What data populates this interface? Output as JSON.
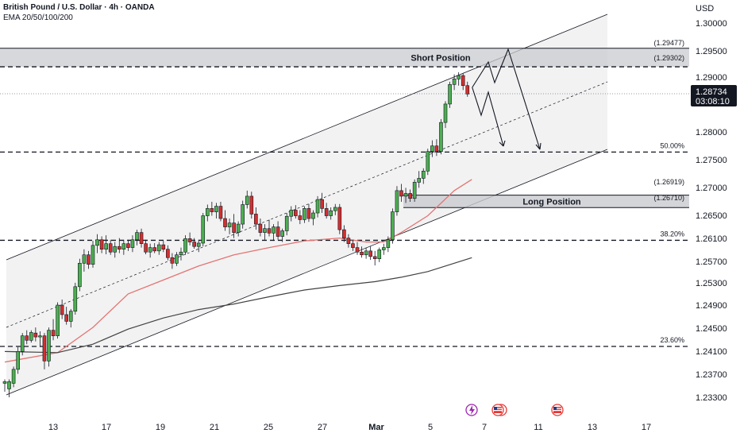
{
  "header": {
    "symbol_line": "British Pound / U.S. Dollar · 4h · OANDA",
    "indicator_line": "EMA 20/50/100/200"
  },
  "axis": {
    "currency": "USD"
  },
  "last_price": {
    "value": "1.28734",
    "countdown": "03:08:10"
  },
  "positions": {
    "short_label": "Short Position",
    "long_label": "Long Position"
  },
  "colors": {
    "up": "#4caf50",
    "down": "#d32f2f",
    "ema_fast": "#e57373",
    "ema_slow": "#424242",
    "price_box": "#131722"
  },
  "chart_data": {
    "type": "candlestick",
    "title": "",
    "ylabel": "USD",
    "ylim": [
      1.229,
      1.304
    ],
    "y_ticks": [
      "1.30000",
      "1.29500",
      "1.29000",
      "1.28000",
      "1.27500",
      "1.27000",
      "1.26500",
      "1.26100",
      "1.25700",
      "1.25300",
      "1.24900",
      "1.24500",
      "1.24100",
      "1.23700",
      "1.23300"
    ],
    "x_ticks": [
      "13",
      "17",
      "19",
      "21",
      "25",
      "27",
      "Mar",
      "5",
      "7",
      "11",
      "13",
      "17"
    ],
    "annotations": {
      "short_zone_top": "(1.29477)",
      "short_zone_mid": "(1.29302)",
      "long_zone_top": "(1.26919)",
      "long_zone_bottom": "(1.26710)",
      "fib_50": "50.00%",
      "fib_38": "38.20%",
      "fib_23": "23.60%"
    },
    "levels": {
      "short_zone": [
        1.29302,
        1.29477
      ],
      "long_zone": [
        1.2671,
        1.26919
      ],
      "fib_50": 1.2769,
      "fib_38": 1.2611,
      "fib_23": 1.2421,
      "last": 1.28734
    },
    "candles": [
      {
        "o": 1.2355,
        "h": 1.2362,
        "l": 1.234,
        "c": 1.2358
      },
      {
        "o": 1.2345,
        "h": 1.2362,
        "l": 1.233,
        "c": 1.2358
      },
      {
        "o": 1.2355,
        "h": 1.2385,
        "l": 1.2348,
        "c": 1.238
      },
      {
        "o": 1.238,
        "h": 1.242,
        "l": 1.2372,
        "c": 1.2412
      },
      {
        "o": 1.2412,
        "h": 1.2445,
        "l": 1.2405,
        "c": 1.244
      },
      {
        "o": 1.244,
        "h": 1.245,
        "l": 1.2425,
        "c": 1.2432
      },
      {
        "o": 1.2432,
        "h": 1.245,
        "l": 1.2428,
        "c": 1.2446
      },
      {
        "o": 1.2445,
        "h": 1.2455,
        "l": 1.243,
        "c": 1.2438
      },
      {
        "o": 1.2438,
        "h": 1.2448,
        "l": 1.242,
        "c": 1.244
      },
      {
        "o": 1.244,
        "h": 1.2445,
        "l": 1.238,
        "c": 1.2395
      },
      {
        "o": 1.2395,
        "h": 1.2455,
        "l": 1.2385,
        "c": 1.245
      },
      {
        "o": 1.245,
        "h": 1.247,
        "l": 1.2432,
        "c": 1.244
      },
      {
        "o": 1.244,
        "h": 1.25,
        "l": 1.2435,
        "c": 1.2495
      },
      {
        "o": 1.2495,
        "h": 1.2505,
        "l": 1.247,
        "c": 1.2478
      },
      {
        "o": 1.2478,
        "h": 1.2492,
        "l": 1.246,
        "c": 1.2466
      },
      {
        "o": 1.2466,
        "h": 1.2488,
        "l": 1.2455,
        "c": 1.2484
      },
      {
        "o": 1.2484,
        "h": 1.2535,
        "l": 1.2478,
        "c": 1.2528
      },
      {
        "o": 1.2528,
        "h": 1.2578,
        "l": 1.252,
        "c": 1.257
      },
      {
        "o": 1.257,
        "h": 1.2595,
        "l": 1.2555,
        "c": 1.2585
      },
      {
        "o": 1.2585,
        "h": 1.2592,
        "l": 1.256,
        "c": 1.2568
      },
      {
        "o": 1.2568,
        "h": 1.261,
        "l": 1.2562,
        "c": 1.2602
      },
      {
        "o": 1.2602,
        "h": 1.2622,
        "l": 1.2588,
        "c": 1.2612
      },
      {
        "o": 1.2612,
        "h": 1.2618,
        "l": 1.2588,
        "c": 1.2595
      },
      {
        "o": 1.2595,
        "h": 1.262,
        "l": 1.2586,
        "c": 1.2605
      },
      {
        "o": 1.2605,
        "h": 1.2612,
        "l": 1.2585,
        "c": 1.259
      },
      {
        "o": 1.259,
        "h": 1.2608,
        "l": 1.258,
        "c": 1.26
      },
      {
        "o": 1.26,
        "h": 1.2615,
        "l": 1.2588,
        "c": 1.2595
      },
      {
        "o": 1.2595,
        "h": 1.2612,
        "l": 1.2585,
        "c": 1.2605
      },
      {
        "o": 1.2605,
        "h": 1.2612,
        "l": 1.2592,
        "c": 1.2598
      },
      {
        "o": 1.2598,
        "h": 1.262,
        "l": 1.259,
        "c": 1.2612
      },
      {
        "o": 1.2612,
        "h": 1.263,
        "l": 1.2602,
        "c": 1.2625
      },
      {
        "o": 1.2625,
        "h": 1.2632,
        "l": 1.2598,
        "c": 1.2605
      },
      {
        "o": 1.2605,
        "h": 1.2612,
        "l": 1.2586,
        "c": 1.259
      },
      {
        "o": 1.259,
        "h": 1.2605,
        "l": 1.258,
        "c": 1.2598
      },
      {
        "o": 1.2598,
        "h": 1.2606,
        "l": 1.2588,
        "c": 1.2592
      },
      {
        "o": 1.2592,
        "h": 1.2608,
        "l": 1.2585,
        "c": 1.2603
      },
      {
        "o": 1.2603,
        "h": 1.261,
        "l": 1.259,
        "c": 1.2595
      },
      {
        "o": 1.2595,
        "h": 1.2602,
        "l": 1.2575,
        "c": 1.258
      },
      {
        "o": 1.258,
        "h": 1.2588,
        "l": 1.256,
        "c": 1.257
      },
      {
        "o": 1.257,
        "h": 1.259,
        "l": 1.2565,
        "c": 1.2585
      },
      {
        "o": 1.2585,
        "h": 1.2598,
        "l": 1.2575,
        "c": 1.259
      },
      {
        "o": 1.259,
        "h": 1.262,
        "l": 1.2585,
        "c": 1.2614
      },
      {
        "o": 1.2614,
        "h": 1.2625,
        "l": 1.2602,
        "c": 1.2608
      },
      {
        "o": 1.2608,
        "h": 1.2615,
        "l": 1.2596,
        "c": 1.26
      },
      {
        "o": 1.26,
        "h": 1.2612,
        "l": 1.259,
        "c": 1.2606
      },
      {
        "o": 1.2606,
        "h": 1.266,
        "l": 1.26,
        "c": 1.2655
      },
      {
        "o": 1.2655,
        "h": 1.2675,
        "l": 1.2645,
        "c": 1.2668
      },
      {
        "o": 1.2668,
        "h": 1.268,
        "l": 1.2655,
        "c": 1.2662
      },
      {
        "o": 1.2662,
        "h": 1.2678,
        "l": 1.265,
        "c": 1.2672
      },
      {
        "o": 1.2672,
        "h": 1.268,
        "l": 1.2645,
        "c": 1.265
      },
      {
        "o": 1.265,
        "h": 1.2665,
        "l": 1.2628,
        "c": 1.2635
      },
      {
        "o": 1.2635,
        "h": 1.265,
        "l": 1.2622,
        "c": 1.2642
      },
      {
        "o": 1.2642,
        "h": 1.2658,
        "l": 1.2615,
        "c": 1.2625
      },
      {
        "o": 1.2625,
        "h": 1.2645,
        "l": 1.2618,
        "c": 1.264
      },
      {
        "o": 1.264,
        "h": 1.2682,
        "l": 1.2632,
        "c": 1.2675
      },
      {
        "o": 1.2675,
        "h": 1.27,
        "l": 1.2668,
        "c": 1.269
      },
      {
        "o": 1.269,
        "h": 1.2698,
        "l": 1.265,
        "c": 1.2658
      },
      {
        "o": 1.2658,
        "h": 1.267,
        "l": 1.263,
        "c": 1.264
      },
      {
        "o": 1.264,
        "h": 1.265,
        "l": 1.2618,
        "c": 1.2625
      },
      {
        "o": 1.2625,
        "h": 1.264,
        "l": 1.2612,
        "c": 1.2632
      },
      {
        "o": 1.2632,
        "h": 1.2648,
        "l": 1.2618,
        "c": 1.2624
      },
      {
        "o": 1.2624,
        "h": 1.264,
        "l": 1.261,
        "c": 1.2635
      },
      {
        "o": 1.2635,
        "h": 1.2645,
        "l": 1.2612,
        "c": 1.2618
      },
      {
        "o": 1.2618,
        "h": 1.2632,
        "l": 1.2608,
        "c": 1.2628
      },
      {
        "o": 1.2628,
        "h": 1.266,
        "l": 1.262,
        "c": 1.2654
      },
      {
        "o": 1.2654,
        "h": 1.2672,
        "l": 1.2645,
        "c": 1.2665
      },
      {
        "o": 1.2665,
        "h": 1.2674,
        "l": 1.265,
        "c": 1.2655
      },
      {
        "o": 1.2655,
        "h": 1.2665,
        "l": 1.264,
        "c": 1.2648
      },
      {
        "o": 1.2648,
        "h": 1.2672,
        "l": 1.2642,
        "c": 1.2668
      },
      {
        "o": 1.2668,
        "h": 1.2676,
        "l": 1.2644,
        "c": 1.265
      },
      {
        "o": 1.265,
        "h": 1.2665,
        "l": 1.2638,
        "c": 1.266
      },
      {
        "o": 1.266,
        "h": 1.269,
        "l": 1.2652,
        "c": 1.2684
      },
      {
        "o": 1.2684,
        "h": 1.2696,
        "l": 1.266,
        "c": 1.2668
      },
      {
        "o": 1.2668,
        "h": 1.2678,
        "l": 1.265,
        "c": 1.2655
      },
      {
        "o": 1.2655,
        "h": 1.267,
        "l": 1.2648,
        "c": 1.2664
      },
      {
        "o": 1.2664,
        "h": 1.2676,
        "l": 1.2656,
        "c": 1.267
      },
      {
        "o": 1.267,
        "h": 1.2676,
        "l": 1.2622,
        "c": 1.263
      },
      {
        "o": 1.263,
        "h": 1.2638,
        "l": 1.2608,
        "c": 1.2615
      },
      {
        "o": 1.2615,
        "h": 1.2622,
        "l": 1.2598,
        "c": 1.2605
      },
      {
        "o": 1.2605,
        "h": 1.2612,
        "l": 1.2592,
        "c": 1.2598
      },
      {
        "o": 1.2598,
        "h": 1.2608,
        "l": 1.2585,
        "c": 1.259
      },
      {
        "o": 1.259,
        "h": 1.26,
        "l": 1.258,
        "c": 1.2585
      },
      {
        "o": 1.2585,
        "h": 1.2598,
        "l": 1.2578,
        "c": 1.2592
      },
      {
        "o": 1.2592,
        "h": 1.26,
        "l": 1.2576,
        "c": 1.2582
      },
      {
        "o": 1.2582,
        "h": 1.2592,
        "l": 1.2566,
        "c": 1.2578
      },
      {
        "o": 1.2578,
        "h": 1.2598,
        "l": 1.2572,
        "c": 1.2594
      },
      {
        "o": 1.2594,
        "h": 1.2605,
        "l": 1.2585,
        "c": 1.2598
      },
      {
        "o": 1.2598,
        "h": 1.2618,
        "l": 1.259,
        "c": 1.2612
      },
      {
        "o": 1.2612,
        "h": 1.2668,
        "l": 1.2605,
        "c": 1.2662
      },
      {
        "o": 1.2662,
        "h": 1.2708,
        "l": 1.2655,
        "c": 1.27
      },
      {
        "o": 1.27,
        "h": 1.2712,
        "l": 1.268,
        "c": 1.269
      },
      {
        "o": 1.269,
        "h": 1.2705,
        "l": 1.2678,
        "c": 1.2695
      },
      {
        "o": 1.2695,
        "h": 1.2702,
        "l": 1.268,
        "c": 1.2686
      },
      {
        "o": 1.2686,
        "h": 1.272,
        "l": 1.268,
        "c": 1.2715
      },
      {
        "o": 1.2715,
        "h": 1.2735,
        "l": 1.2705,
        "c": 1.2722
      },
      {
        "o": 1.2722,
        "h": 1.274,
        "l": 1.2712,
        "c": 1.2735
      },
      {
        "o": 1.2735,
        "h": 1.2775,
        "l": 1.2728,
        "c": 1.277
      },
      {
        "o": 1.277,
        "h": 1.279,
        "l": 1.276,
        "c": 1.278
      },
      {
        "o": 1.278,
        "h": 1.2792,
        "l": 1.2762,
        "c": 1.277
      },
      {
        "o": 1.277,
        "h": 1.2828,
        "l": 1.2765,
        "c": 1.2822
      },
      {
        "o": 1.2822,
        "h": 1.286,
        "l": 1.2812,
        "c": 1.2855
      },
      {
        "o": 1.2855,
        "h": 1.2895,
        "l": 1.2848,
        "c": 1.289
      },
      {
        "o": 1.289,
        "h": 1.2908,
        "l": 1.288,
        "c": 1.29
      },
      {
        "o": 1.29,
        "h": 1.2912,
        "l": 1.2888,
        "c": 1.2906
      },
      {
        "o": 1.2906,
        "h": 1.291,
        "l": 1.288,
        "c": 1.2888
      },
      {
        "o": 1.2888,
        "h": 1.2895,
        "l": 1.2868,
        "c": 1.2873
      }
    ],
    "series": [
      {
        "type": "ema",
        "values": [
          [
            0,
            1.2393
          ],
          [
            12,
            1.241
          ],
          [
            20,
            1.2455
          ],
          [
            28,
            1.2515
          ],
          [
            36,
            1.254
          ],
          [
            44,
            1.2565
          ],
          [
            52,
            1.2585
          ],
          [
            60,
            1.2598
          ],
          [
            68,
            1.261
          ],
          [
            76,
            1.2615
          ],
          [
            82,
            1.2608
          ],
          [
            86,
            1.2608
          ],
          [
            90,
            1.2625
          ],
          [
            96,
            1.2655
          ],
          [
            102,
            1.27
          ],
          [
            106,
            1.272
          ]
        ]
      },
      {
        "type": "ema",
        "values": [
          [
            0,
            1.2412
          ],
          [
            12,
            1.241
          ],
          [
            20,
            1.2425
          ],
          [
            28,
            1.2452
          ],
          [
            36,
            1.2472
          ],
          [
            44,
            1.2487
          ],
          [
            52,
            1.2497
          ],
          [
            60,
            1.251
          ],
          [
            68,
            1.2522
          ],
          [
            76,
            1.253
          ],
          [
            84,
            1.2537
          ],
          [
            90,
            1.2545
          ],
          [
            96,
            1.2555
          ],
          [
            102,
            1.257
          ],
          [
            106,
            1.258
          ]
        ]
      }
    ]
  }
}
